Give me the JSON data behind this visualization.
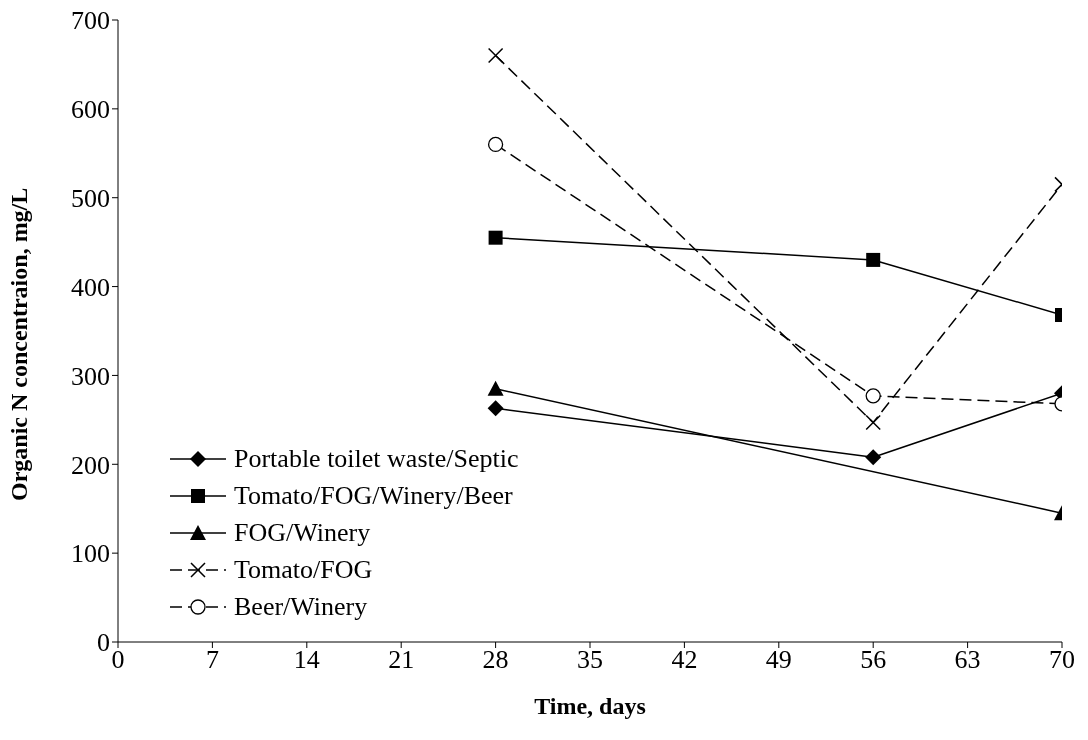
{
  "chart_data": {
    "type": "line",
    "xlabel": "Time, days",
    "ylabel": "Organic N concentraion, mg/L",
    "x": [
      28,
      56,
      70
    ],
    "xlim": [
      0,
      70
    ],
    "xticks": [
      0,
      7,
      14,
      21,
      28,
      35,
      42,
      49,
      56,
      63,
      70
    ],
    "ylim": [
      0,
      700
    ],
    "yticks": [
      0,
      100,
      200,
      300,
      400,
      500,
      600,
      700
    ],
    "grid": false,
    "legend": "bottom left",
    "series": [
      {
        "name": "Portable toilet waste/Septic",
        "color": "#000000",
        "values": [
          263,
          208,
          280
        ],
        "marker": "diamond",
        "line_style": "solid"
      },
      {
        "name": "Tomato/FOG/Winery/Beer",
        "color": "#000000",
        "values": [
          455,
          430,
          368
        ],
        "marker": "square",
        "line_style": "solid"
      },
      {
        "name": "FOG/Winery",
        "color": "#000000",
        "values": [
          285,
          null,
          145
        ],
        "marker": "triangle",
        "line_style": "solid"
      },
      {
        "name": "Tomato/FOG",
        "color": "#000000",
        "values": [
          660,
          247,
          515
        ],
        "marker": "cross",
        "line_style": "dashed"
      },
      {
        "name": "Beer/Winery",
        "color": "#000000",
        "values": [
          560,
          277,
          268
        ],
        "marker": "circle",
        "line_style": "dashed"
      }
    ]
  }
}
